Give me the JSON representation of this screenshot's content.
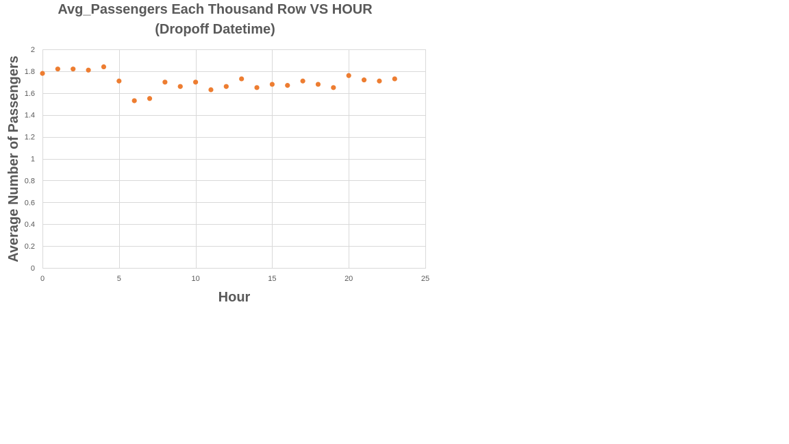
{
  "chart_data": {
    "type": "scatter",
    "title_lines": [
      "Avg_Passengers Each Thousand Row VS HOUR",
      "(Dropoff Datetime)"
    ],
    "xlabel": "Hour",
    "ylabel": "Average Number of Passengers",
    "xlim": [
      0,
      25
    ],
    "ylim": [
      0,
      2
    ],
    "xticks": [
      0,
      5,
      10,
      15,
      20,
      25
    ],
    "yticks": [
      0,
      0.2,
      0.4,
      0.6,
      0.8,
      1,
      1.2,
      1.4,
      1.6,
      1.8,
      2
    ],
    "grid": true,
    "legend": "none",
    "marker_color": "#ED7D31",
    "points": [
      {
        "x": 0,
        "y": 1.78
      },
      {
        "x": 1,
        "y": 1.82
      },
      {
        "x": 2,
        "y": 1.82
      },
      {
        "x": 3,
        "y": 1.81
      },
      {
        "x": 4,
        "y": 1.84
      },
      {
        "x": 5,
        "y": 1.71
      },
      {
        "x": 6,
        "y": 1.53
      },
      {
        "x": 7,
        "y": 1.55
      },
      {
        "x": 8,
        "y": 1.7
      },
      {
        "x": 9,
        "y": 1.66
      },
      {
        "x": 10,
        "y": 1.7
      },
      {
        "x": 11,
        "y": 1.63
      },
      {
        "x": 12,
        "y": 1.66
      },
      {
        "x": 13,
        "y": 1.73
      },
      {
        "x": 14,
        "y": 1.65
      },
      {
        "x": 15,
        "y": 1.68
      },
      {
        "x": 16,
        "y": 1.67
      },
      {
        "x": 17,
        "y": 1.71
      },
      {
        "x": 18,
        "y": 1.68
      },
      {
        "x": 19,
        "y": 1.65
      },
      {
        "x": 20,
        "y": 1.76
      },
      {
        "x": 21,
        "y": 1.72
      },
      {
        "x": 22,
        "y": 1.71
      },
      {
        "x": 23,
        "y": 1.73
      }
    ]
  }
}
